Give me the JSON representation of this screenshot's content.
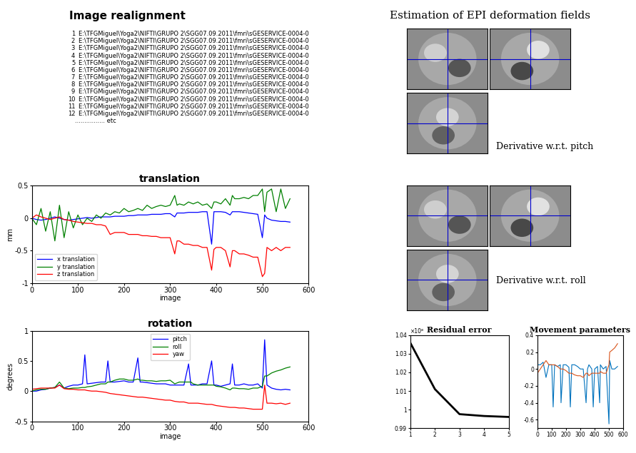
{
  "image_realignment": {
    "title": "Image realignment",
    "files": [
      {
        "number": 1,
        "path": "E:\\TFGMiguel\\Yoga2\\NIFTI\\GRUPO 2\\SGG07.09.2011\\fmri\\sGESERVICE-0004-0"
      },
      {
        "number": 2,
        "path": "E:\\TFGMiguel\\Yoga2\\NIFTI\\GRUPO 2\\SGG07.09.2011\\fmri\\sGESERVICE-0004-0"
      },
      {
        "number": 3,
        "path": "E:\\TFGMiguel\\Yoga2\\NIFTI\\GRUPO 2\\SGG07.09.2011\\fmri\\sGESERVICE-0004-0"
      },
      {
        "number": 4,
        "path": "E:\\TFGMiguel\\Yoga2\\NIFTI\\GRUPO 2\\SGG07.09.2011\\fmri\\sGESERVICE-0004-0"
      },
      {
        "number": 5,
        "path": "E:\\TFGMiguel\\Yoga2\\NIFTI\\GRUPO 2\\SGG07.09.2011\\fmri\\sGESERVICE-0004-0"
      },
      {
        "number": 6,
        "path": "E:\\TFGMiguel\\Yoga2\\NIFTI\\GRUPO 2\\SGG07.09.2011\\fmri\\sGESERVICE-0004-0"
      },
      {
        "number": 7,
        "path": "E:\\TFGMiguel\\Yoga2\\NIFTI\\GRUPO 2\\SGG07.09.2011\\fmri\\sGESERVICE-0004-0"
      },
      {
        "number": 8,
        "path": "E:\\TFGMiguel\\Yoga2\\NIFTI\\GRUPO 2\\SGG07.09.2011\\fmri\\sGESERVICE-0004-0"
      },
      {
        "number": 9,
        "path": "E:\\TFGMiguel\\Yoga2\\NIFTI\\GRUPO 2\\SGG07.09.2011\\fmri\\sGESERVICE-0004-0"
      },
      {
        "number": 10,
        "path": "E:\\TFGMiguel\\Yoga2\\NIFTI\\GRUPO 2\\SGG07.09.2011\\fmri\\sGESERVICE-0004-0"
      },
      {
        "number": 11,
        "path": "E:\\TFGMiguel\\Yoga2\\NIFTI\\GRUPO 2\\SGG07.09.2011\\fmri\\sGESERVICE-0004-0"
      },
      {
        "number": 12,
        "path": "E:\\TFGMiguel\\Yoga2\\NIFTI\\GRUPO 2\\SGG07.09.2011\\fmri\\sGESERVICE-0004-0"
      }
    ],
    "more": "................ etc"
  },
  "deformation_fields": {
    "title": "Estimation of EPI deformation fields",
    "panels": [
      "Derivative w.r.t. pitch",
      "Derivative w.r.t. roll"
    ]
  },
  "chart_data": [
    {
      "type": "line",
      "title": "translation",
      "x_label": "image",
      "y_label": "mm",
      "xlim": [
        0,
        600
      ],
      "xticks": [
        0,
        100,
        200,
        300,
        400,
        500,
        600
      ],
      "ylim": [
        -1,
        0.5
      ],
      "yticks": [
        -1,
        -0.5,
        0,
        0.5
      ],
      "grid": false,
      "legend": "lower left",
      "x": [
        0,
        10,
        20,
        30,
        40,
        50,
        60,
        70,
        80,
        90,
        100,
        110,
        120,
        130,
        140,
        150,
        160,
        170,
        180,
        190,
        200,
        210,
        220,
        230,
        240,
        250,
        260,
        270,
        280,
        290,
        300,
        310,
        315,
        320,
        330,
        340,
        350,
        360,
        370,
        380,
        390,
        395,
        400,
        410,
        420,
        430,
        435,
        440,
        450,
        460,
        470,
        480,
        490,
        500,
        505,
        510,
        520,
        530,
        540,
        550,
        560
      ],
      "series": [
        {
          "name": "x translation",
          "color": "#0000ff",
          "values": [
            0,
            -0.02,
            -0.03,
            -0.02,
            0.0,
            0.02,
            0.0,
            -0.02,
            -0.03,
            -0.02,
            -0.01,
            0.0,
            0.01,
            0.0,
            0.01,
            0.02,
            0.02,
            0.02,
            0.03,
            0.03,
            0.03,
            0.04,
            0.04,
            0.05,
            0.05,
            0.05,
            0.06,
            0.06,
            0.06,
            0.07,
            0.07,
            0.02,
            0.08,
            0.08,
            0.08,
            0.09,
            0.09,
            0.09,
            0.1,
            0.1,
            -0.4,
            0.1,
            0.1,
            0.1,
            0.09,
            0.05,
            0.1,
            0.1,
            0.1,
            0.09,
            0.08,
            0.07,
            0.06,
            -0.3,
            0.05,
            0.0,
            -0.03,
            -0.04,
            -0.05,
            -0.05,
            -0.06
          ]
        },
        {
          "name": "y translation",
          "color": "#008000",
          "values": [
            0.0,
            -0.1,
            0.15,
            -0.2,
            0.1,
            -0.35,
            0.2,
            -0.3,
            0.1,
            -0.15,
            0.05,
            -0.1,
            0.0,
            -0.05,
            0.05,
            0.0,
            0.08,
            0.05,
            0.1,
            0.08,
            0.15,
            0.1,
            0.12,
            0.15,
            0.12,
            0.2,
            0.15,
            0.18,
            0.2,
            0.18,
            0.2,
            0.35,
            0.2,
            0.22,
            0.2,
            0.25,
            0.22,
            0.25,
            0.2,
            0.22,
            0.15,
            0.25,
            0.25,
            0.22,
            0.3,
            0.2,
            0.35,
            0.3,
            0.3,
            0.32,
            0.3,
            0.35,
            0.35,
            0.45,
            0.1,
            0.4,
            0.45,
            0.1,
            0.45,
            0.15,
            0.3
          ]
        },
        {
          "name": "z translation",
          "color": "#ff0000",
          "values": [
            0.0,
            0.05,
            0.02,
            0.0,
            -0.02,
            0.0,
            0.02,
            -0.02,
            -0.03,
            -0.05,
            -0.06,
            -0.07,
            -0.08,
            -0.08,
            -0.1,
            -0.1,
            -0.12,
            -0.25,
            -0.22,
            -0.22,
            -0.22,
            -0.25,
            -0.25,
            -0.25,
            -0.27,
            -0.27,
            -0.28,
            -0.28,
            -0.3,
            -0.3,
            -0.3,
            -0.55,
            -0.35,
            -0.35,
            -0.4,
            -0.4,
            -0.42,
            -0.42,
            -0.45,
            -0.45,
            -0.8,
            -0.48,
            -0.45,
            -0.45,
            -0.5,
            -0.75,
            -0.5,
            -0.5,
            -0.55,
            -0.55,
            -0.57,
            -0.6,
            -0.6,
            -0.9,
            -0.85,
            -0.45,
            -0.5,
            -0.45,
            -0.5,
            -0.45,
            -0.45
          ]
        }
      ]
    },
    {
      "type": "line",
      "title": "rotation",
      "x_label": "image",
      "y_label": "degrees",
      "xlim": [
        0,
        600
      ],
      "xticks": [
        0,
        100,
        200,
        300,
        400,
        500,
        600
      ],
      "ylim": [
        -0.5,
        1
      ],
      "yticks": [
        -0.5,
        0,
        0.5,
        1
      ],
      "grid": false,
      "legend": "upper center",
      "x": [
        0,
        10,
        20,
        30,
        40,
        50,
        60,
        70,
        80,
        90,
        100,
        110,
        115,
        120,
        130,
        140,
        150,
        160,
        165,
        170,
        180,
        190,
        200,
        210,
        220,
        230,
        235,
        240,
        250,
        260,
        270,
        280,
        290,
        300,
        310,
        320,
        330,
        340,
        345,
        350,
        360,
        370,
        380,
        390,
        395,
        400,
        410,
        420,
        430,
        435,
        440,
        450,
        460,
        470,
        480,
        490,
        500,
        505,
        510,
        520,
        530,
        540,
        550,
        560
      ],
      "series": [
        {
          "name": "pitch",
          "color": "#0000ff",
          "values": [
            0,
            0.0,
            0.02,
            0.03,
            0.05,
            0.06,
            0.1,
            0.05,
            0.08,
            0.1,
            0.1,
            0.12,
            0.6,
            0.12,
            0.13,
            0.14,
            0.15,
            0.15,
            0.5,
            0.15,
            0.15,
            0.16,
            0.17,
            0.15,
            0.15,
            0.55,
            0.15,
            0.15,
            0.14,
            0.13,
            0.12,
            0.12,
            0.12,
            0.1,
            0.1,
            0.1,
            0.1,
            0.45,
            0.1,
            0.1,
            0.1,
            0.12,
            0.12,
            0.5,
            0.1,
            0.1,
            0.08,
            0.1,
            0.12,
            0.45,
            0.1,
            0.1,
            0.12,
            0.1,
            0.1,
            0.12,
            0.05,
            0.85,
            0.1,
            0.05,
            0.03,
            0.02,
            0.03,
            0.02
          ]
        },
        {
          "name": "roll",
          "color": "#008000",
          "values": [
            0,
            0.02,
            0.03,
            0.03,
            0.05,
            0.06,
            0.15,
            0.05,
            0.04,
            0.05,
            0.05,
            0.06,
            0.06,
            0.07,
            0.08,
            0.1,
            0.12,
            0.12,
            0.15,
            0.15,
            0.18,
            0.2,
            0.2,
            0.18,
            0.18,
            0.2,
            0.18,
            0.18,
            0.17,
            0.17,
            0.16,
            0.17,
            0.17,
            0.18,
            0.12,
            0.15,
            0.15,
            0.15,
            0.15,
            0.12,
            0.1,
            0.1,
            0.1,
            0.1,
            0.1,
            0.08,
            0.07,
            0.05,
            0.02,
            0.05,
            0.05,
            0.04,
            0.04,
            0.03,
            0.05,
            0.05,
            0.08,
            0.25,
            0.25,
            0.3,
            0.33,
            0.35,
            0.38,
            0.4
          ]
        },
        {
          "name": "yaw",
          "color": "#ff0000",
          "values": [
            0.03,
            0.04,
            0.05,
            0.05,
            0.05,
            0.05,
            0.1,
            0.04,
            0.03,
            0.03,
            0.02,
            0.02,
            0.02,
            0.01,
            0.0,
            0.0,
            -0.01,
            -0.02,
            -0.03,
            -0.04,
            -0.05,
            -0.06,
            -0.07,
            -0.08,
            -0.09,
            -0.1,
            -0.1,
            -0.1,
            -0.11,
            -0.12,
            -0.13,
            -0.14,
            -0.15,
            -0.15,
            -0.17,
            -0.18,
            -0.18,
            -0.2,
            -0.2,
            -0.2,
            -0.2,
            -0.21,
            -0.22,
            -0.22,
            -0.23,
            -0.24,
            -0.25,
            -0.26,
            -0.27,
            -0.27,
            -0.27,
            -0.28,
            -0.28,
            -0.29,
            -0.3,
            -0.3,
            -0.3,
            0.1,
            -0.2,
            -0.2,
            -0.21,
            -0.2,
            -0.22,
            -0.2
          ]
        }
      ]
    },
    {
      "type": "line",
      "title": "Residual error",
      "annotations": [
        "×10⁸"
      ],
      "xlim": [
        1,
        5
      ],
      "xticks": [
        1,
        2,
        3,
        4,
        5
      ],
      "ylim": [
        0.99,
        1.04
      ],
      "yticks": [
        0.99,
        1,
        1.01,
        1.02,
        1.03,
        1.04
      ],
      "grid": false,
      "x": [
        1,
        2,
        3,
        4,
        5
      ],
      "series": [
        {
          "color": "#000000",
          "values": [
            1.036,
            1.011,
            0.9975,
            0.9965,
            0.996
          ]
        }
      ]
    },
    {
      "type": "line",
      "title": "Movement parameters",
      "xlim": [
        0,
        600
      ],
      "xticks": [
        0,
        100,
        200,
        300,
        400,
        500,
        600
      ],
      "ylim": [
        -0.7,
        0.4
      ],
      "yticks": [
        -0.6,
        -0.4,
        -0.2,
        0,
        0.2,
        0.4
      ],
      "grid": false,
      "x": [
        0,
        20,
        40,
        60,
        80,
        100,
        110,
        120,
        140,
        160,
        165,
        180,
        200,
        220,
        230,
        240,
        260,
        280,
        300,
        320,
        340,
        350,
        360,
        380,
        390,
        400,
        420,
        435,
        440,
        460,
        480,
        500,
        505,
        520,
        540,
        560
      ],
      "series": [
        {
          "color": "#0072bd",
          "values": [
            0.05,
            0.05,
            0.08,
            -0.1,
            0.05,
            0.05,
            -0.45,
            0.05,
            0.03,
            0.05,
            -0.4,
            0.05,
            0.05,
            0.02,
            -0.45,
            0.05,
            0.05,
            0.03,
            0.0,
            0.0,
            -0.4,
            0.0,
            0.05,
            0.0,
            -0.45,
            0.0,
            0.03,
            -0.4,
            0.05,
            0.0,
            0.03,
            -0.65,
            0.1,
            0.0,
            0.0,
            0.03
          ]
        },
        {
          "color": "#d95319",
          "values": [
            -0.05,
            0.0,
            0.05,
            0.1,
            0.05,
            0.05,
            0.05,
            0.05,
            0.03,
            0.0,
            0.0,
            0.0,
            -0.02,
            -0.05,
            -0.05,
            -0.05,
            -0.07,
            -0.08,
            -0.08,
            -0.1,
            -0.05,
            -0.05,
            -0.08,
            -0.05,
            -0.05,
            -0.05,
            -0.05,
            -0.05,
            -0.03,
            -0.05,
            -0.05,
            0.05,
            0.2,
            0.22,
            0.25,
            0.3
          ]
        }
      ]
    }
  ]
}
